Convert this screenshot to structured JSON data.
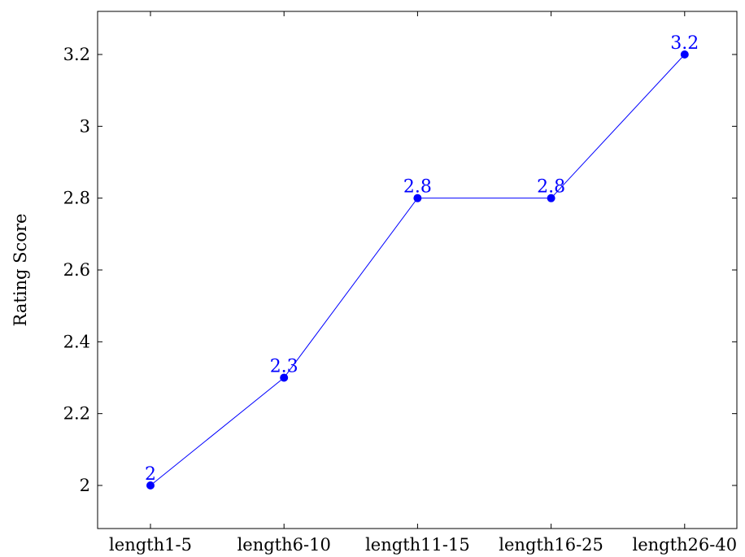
{
  "chart_data": {
    "type": "line",
    "title": "",
    "xlabel": "",
    "ylabel": "Rating Score",
    "categories": [
      "length1-5",
      "length6-10",
      "length11-15",
      "length16-25",
      "length26-40"
    ],
    "series": [
      {
        "values": [
          2,
          2.3,
          2.8,
          2.8,
          3.2
        ],
        "labels": [
          "2",
          "2.3",
          "2.8",
          "2.8",
          "3.2"
        ]
      }
    ],
    "ylim": [
      1.88,
      3.32
    ],
    "yticks": [
      2,
      2.2,
      2.4,
      2.6,
      2.8,
      3,
      3.2
    ],
    "ytick_labels": [
      "2",
      "2.2",
      "2.4",
      "2.6",
      "2.8",
      "3",
      "3.2"
    ],
    "grid": false,
    "legend": "none",
    "colors": {
      "series": "#0000ff",
      "axis": "#000000"
    }
  }
}
